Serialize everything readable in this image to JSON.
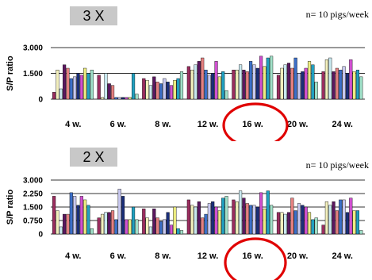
{
  "chart_data": [
    {
      "type": "bar",
      "label_box": "3 X",
      "note": "n= 10 pigs/week",
      "ylabel": "S/P ratio",
      "ylim": [
        0,
        3
      ],
      "yticks": [
        "3.000",
        "1.500",
        "0"
      ],
      "ytick_values": [
        3.0,
        1.5,
        0
      ],
      "categories": [
        "4 w.",
        "6 w.",
        "8 w.",
        "12 w.",
        "16 w.",
        "20 w.",
        "24 w."
      ],
      "highlight_category": "16 w.",
      "series_colors": [
        "#9b2d5f",
        "#f2efbc",
        "#c8e8ef",
        "#5b1760",
        "#e58080",
        "#3c6fc8",
        "#c8c8ef",
        "#1a2e7a",
        "#d050d0",
        "#eded80",
        "#20a0c0",
        "#a0e0c8"
      ],
      "values": [
        [
          0.4,
          1.7,
          0.6,
          2.0,
          1.8,
          1.2,
          1.3,
          1.5,
          1.4,
          1.8,
          1.5,
          1.7
        ],
        [
          1.4,
          0.1,
          1.5,
          0.9,
          0.8,
          0.1,
          0.1,
          0.1,
          0.1,
          0.1,
          1.5,
          0.3
        ],
        [
          1.2,
          1.1,
          0.8,
          1.3,
          1.0,
          0.9,
          1.2,
          1.0,
          0.8,
          1.1,
          1.2,
          1.6
        ],
        [
          1.9,
          1.7,
          2.0,
          2.2,
          2.4,
          1.7,
          1.4,
          1.5,
          2.2,
          1.3,
          1.6,
          0.5
        ],
        [
          1.7,
          1.7,
          2.0,
          1.7,
          1.6,
          2.2,
          2.0,
          1.8,
          2.5,
          1.9,
          2.4,
          2.5
        ],
        [
          1.4,
          1.8,
          2.0,
          2.1,
          1.8,
          2.4,
          1.5,
          1.6,
          1.8,
          2.2,
          2.0,
          1.0
        ],
        [
          1.6,
          2.3,
          2.4,
          1.6,
          1.8,
          1.7,
          1.9,
          1.5,
          2.3,
          1.6,
          1.7,
          1.3
        ]
      ]
    },
    {
      "type": "bar",
      "label_box": "2 X",
      "note": "n= 10 pigs/week",
      "ylabel": "S/P ratio",
      "ylim": [
        0,
        3
      ],
      "yticks": [
        "3.000",
        "2.250",
        "1.500",
        "0.750",
        "0"
      ],
      "ytick_values": [
        3.0,
        2.25,
        1.5,
        0.75,
        0
      ],
      "categories": [
        "4 w.",
        "6 w.",
        "8 w.",
        "12 w.",
        "16 w.",
        "20 w.",
        "24 w."
      ],
      "highlight_category": "16 w.",
      "series_colors": [
        "#9b2d5f",
        "#f2efbc",
        "#c8e8ef",
        "#5b1760",
        "#e58080",
        "#3c6fc8",
        "#c8c8ef",
        "#1a2e7a",
        "#d050d0",
        "#eded80",
        "#20a0c0",
        "#a0e0c8"
      ],
      "values": [
        [
          2.1,
          1.3,
          0.4,
          1.1,
          1.1,
          2.3,
          2.1,
          1.6,
          2.1,
          1.9,
          1.6,
          0.3
        ],
        [
          0.9,
          1.1,
          1.2,
          1.2,
          1.3,
          0.8,
          2.5,
          2.1,
          0.8,
          0.8,
          1.5,
          0.8
        ],
        [
          1.4,
          0.9,
          0.4,
          1.4,
          0.9,
          0.7,
          0.8,
          1.2,
          0.5,
          1.5,
          0.3,
          0.2
        ],
        [
          1.9,
          1.6,
          1.5,
          1.8,
          0.9,
          1.1,
          1.7,
          1.8,
          1.5,
          1.3,
          2.0,
          2.1
        ],
        [
          1.9,
          1.8,
          2.4,
          2.0,
          1.7,
          1.6,
          1.6,
          1.5,
          2.3,
          1.4,
          2.4,
          1.6
        ],
        [
          1.2,
          1.2,
          1.1,
          1.2,
          2.0,
          1.3,
          1.7,
          1.6,
          1.5,
          1.2,
          0.8,
          0.9
        ],
        [
          0.5,
          1.8,
          1.6,
          1.8,
          1.3,
          1.9,
          1.9,
          1.2,
          2.0,
          1.3,
          1.3,
          0.2
        ]
      ]
    }
  ]
}
